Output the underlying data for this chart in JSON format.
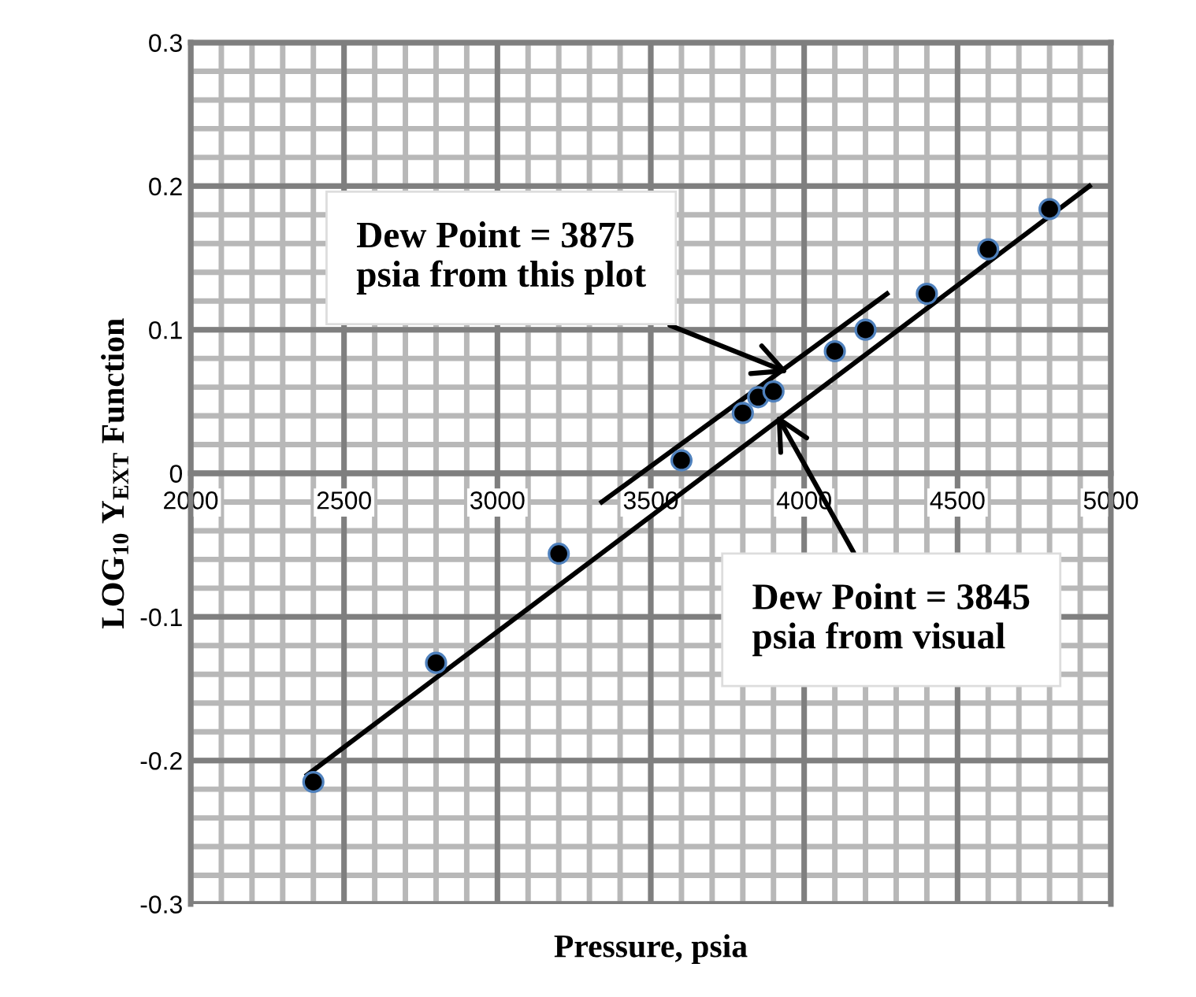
{
  "chart_data": {
    "type": "scatter",
    "xlabel": "Pressure, psia",
    "ylabel": "LOG$_{10}$ Y$_{EXT}$ Function",
    "xlim": [
      2000,
      5000
    ],
    "xticks": [
      2000,
      2500,
      3000,
      3500,
      4000,
      4500,
      5000
    ],
    "ylim": [
      -0.3,
      0.3
    ],
    "yticks": [
      -0.3,
      -0.2,
      -0.1,
      0,
      0.1,
      0.2,
      0.3
    ],
    "grid": true,
    "legend": false,
    "marker": "circle",
    "series": [
      {
        "color": "#000000",
        "x": [
          2400,
          2800,
          3200,
          3600,
          3800,
          3850,
          3900,
          4100,
          4200,
          4400,
          4600,
          4800
        ],
        "values": [
          -0.215,
          -0.132,
          -0.056,
          0.009,
          0.042,
          0.053,
          0.057,
          0.085,
          0.1,
          0.125,
          0.156,
          0.184
        ]
      },
      {
        "type": "line",
        "marker": "none",
        "color": "#000000",
        "x": [
          2380,
          4930
        ],
        "values": [
          -0.21,
          0.2
        ]
      },
      {
        "type": "line",
        "marker": "none",
        "color": "#000000",
        "x": [
          3340,
          4270
        ],
        "values": [
          -0.02,
          0.125
        ]
      }
    ],
    "annotations": [
      {
        "text": "Dew Point = 3875\npsia from this plot",
        "x": 3950,
        "y": 0.07
      },
      {
        "text": "Dew Point = 3845\npsia from visual",
        "x": 3910,
        "y": 0.041
      }
    ]
  }
}
